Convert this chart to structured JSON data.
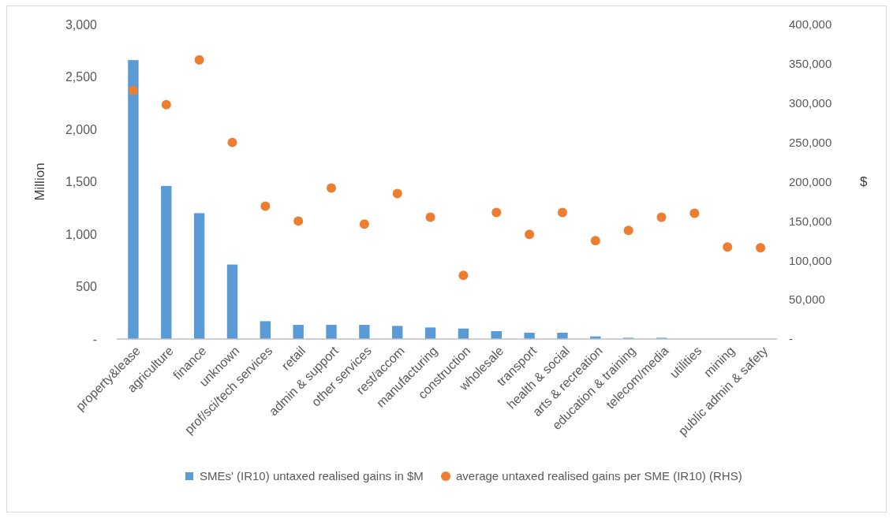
{
  "chart_data": {
    "type": "bar",
    "ylabel": "Million",
    "y2label": "$",
    "categories": [
      "property&lease",
      "agriculture",
      "finance",
      "unknown",
      "prof/sci/tech services",
      "retail",
      "admin & support",
      "other services",
      "rest/accom",
      "manufacturing",
      "construction",
      "wholesale",
      "transport",
      "health & social",
      "arts & recreation",
      "education & training",
      "telecom/media",
      "utilities",
      "mining",
      "public admin & safety"
    ],
    "series": [
      {
        "name": "SMEs' (IR10) untaxed realised gains in $M",
        "color": "#5b9bd5",
        "values": [
          2660,
          1460,
          1200,
          710,
          170,
          135,
          135,
          135,
          125,
          110,
          100,
          75,
          60,
          60,
          25,
          12,
          12,
          null,
          null,
          null
        ]
      },
      {
        "name": "average untaxed realised gains per SME (IR10) (RHS)",
        "type": "scatter",
        "axis": "y2",
        "color": "#ed7d31",
        "values": [
          316000,
          298000,
          355000,
          250000,
          169000,
          150000,
          192000,
          146000,
          185000,
          155000,
          81000,
          161000,
          133000,
          161000,
          125000,
          138000,
          155000,
          160000,
          117000,
          116000
        ]
      }
    ],
    "ylim": [
      0,
      3000
    ],
    "yticks": [
      {
        "value": 0,
        "label": "-"
      },
      {
        "value": 500,
        "label": "500"
      },
      {
        "value": 1000,
        "label": "1,000"
      },
      {
        "value": 1500,
        "label": "1,500"
      },
      {
        "value": 2000,
        "label": "2,000"
      },
      {
        "value": 2500,
        "label": "2,500"
      },
      {
        "value": 3000,
        "label": "3,000"
      }
    ],
    "y2lim": [
      0,
      400000
    ],
    "y2ticks": [
      {
        "value": 0,
        "label": "-"
      },
      {
        "value": 50000,
        "label": "50,000"
      },
      {
        "value": 100000,
        "label": "100,000"
      },
      {
        "value": 150000,
        "label": "150,000"
      },
      {
        "value": 200000,
        "label": "200,000"
      },
      {
        "value": 250000,
        "label": "250,000"
      },
      {
        "value": 300000,
        "label": "300,000"
      },
      {
        "value": 350000,
        "label": "350,000"
      },
      {
        "value": 400000,
        "label": "400,000"
      }
    ],
    "grid": false,
    "legend": "bottom",
    "marker": "circle"
  }
}
